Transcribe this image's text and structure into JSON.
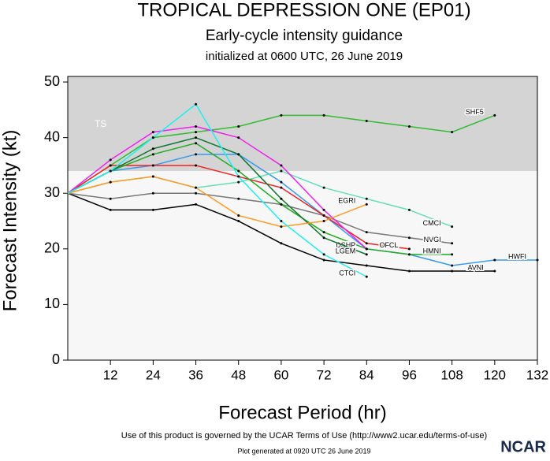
{
  "chart_data": {
    "type": "line",
    "title": "TROPICAL DEPRESSION ONE (EP01)",
    "subtitle": "Early-cycle intensity guidance",
    "init": "initialized at 0600 UTC, 26 June 2019",
    "x_label": "Forecast Period (hr)",
    "y_label": "Forecast Intensity (kt)",
    "footer": "Use of this product is governed by the UCAR Terms of Use (http://www2.ucar.edu/terms-of-use)",
    "generated": "Plot generated at 0920 UTC  26 June 2019",
    "logo": "NCAR",
    "ts_label": "TS",
    "ts_threshold": 34,
    "xlim": [
      0,
      132
    ],
    "ylim": [
      0,
      51
    ],
    "xticks": [
      12,
      24,
      36,
      48,
      60,
      72,
      84,
      96,
      108,
      120,
      132
    ],
    "yticks": [
      0,
      10,
      20,
      30,
      40,
      50
    ],
    "x": [
      0,
      12,
      24,
      36,
      48,
      60,
      72,
      84,
      96,
      108,
      120,
      132
    ],
    "series": [
      {
        "name": "SHF5",
        "color": "#33bb33",
        "values": [
          30,
          35,
          40,
          41,
          42,
          44,
          44,
          43,
          42,
          41,
          44,
          null
        ]
      },
      {
        "name": "AVNI",
        "color": "#000000",
        "values": [
          30,
          27,
          27,
          28,
          25,
          21,
          18,
          17,
          16,
          16,
          16,
          null
        ]
      },
      {
        "name": "HWFI",
        "color": "#3399ee",
        "values": [
          30,
          34,
          35,
          37,
          37,
          32,
          26,
          20,
          19,
          17,
          18,
          18
        ]
      },
      {
        "name": "CMCI",
        "color": "#66ddbb",
        "values": [
          30,
          32,
          33,
          31,
          32,
          34,
          31,
          29,
          27,
          24,
          null,
          null
        ]
      },
      {
        "name": "NVGI",
        "color": "#777777",
        "values": [
          30,
          29,
          30,
          30,
          29,
          28,
          26,
          23,
          22,
          21,
          null,
          null
        ]
      },
      {
        "name": "OFCL",
        "color": "#ee2222",
        "values": [
          30,
          35,
          35,
          35,
          33,
          31,
          26,
          21,
          20,
          null,
          null,
          null
        ]
      },
      {
        "name": "HMNI",
        "color": "#22aa22",
        "values": [
          30,
          34,
          37,
          39,
          34,
          28,
          23,
          20,
          19,
          19,
          null,
          null
        ]
      },
      {
        "name": "DSHP",
        "color": "#ee22ee",
        "values": [
          30,
          36,
          41,
          42,
          40,
          35,
          27,
          20,
          null,
          null,
          null,
          null
        ]
      },
      {
        "name": "LGEM",
        "color": "#117733",
        "values": [
          30,
          34,
          38,
          40,
          37,
          29,
          22,
          19,
          null,
          null,
          null,
          null
        ]
      },
      {
        "name": "EGRI",
        "color": "#ff9922",
        "values": [
          30,
          32,
          33,
          31,
          26,
          24,
          25,
          28,
          null,
          null,
          null,
          null
        ]
      },
      {
        "name": "CTCI",
        "color": "#22eeee",
        "values": [
          30,
          34,
          40,
          46,
          33,
          25,
          19,
          15,
          null,
          null,
          null,
          null
        ]
      }
    ]
  }
}
